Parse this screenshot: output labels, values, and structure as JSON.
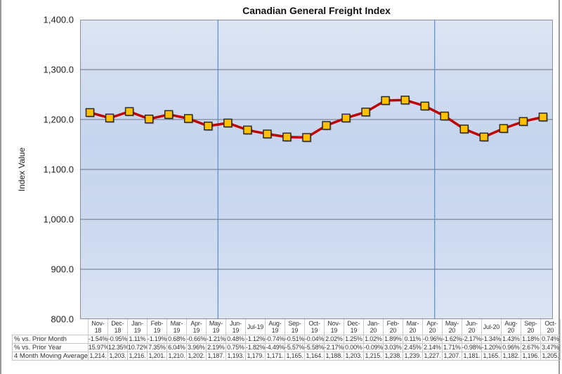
{
  "chart_data": {
    "type": "line",
    "title": "Canadian General Freight Index",
    "xlabel": "",
    "ylabel": "Index Value",
    "ylim": [
      800,
      1400
    ],
    "yticks": [
      "1,400.0",
      "1,300.0",
      "1,200.0",
      "1,100.0",
      "1,000.0",
      "900.0",
      "800.0"
    ],
    "grid": "horizontal",
    "categories": [
      "Nov-18",
      "Dec-18",
      "Jan-19",
      "Feb-19",
      "Mar-19",
      "Apr-19",
      "May-19",
      "Jun-19",
      "Jul-19",
      "Aug-19",
      "Sep-19",
      "Oct-19",
      "Nov-19",
      "Dec-19",
      "Jan-20",
      "Feb-20",
      "Mar-20",
      "Apr-20",
      "May-20",
      "Jun-20",
      "Jul-20",
      "Aug-20",
      "Sep-20",
      "Oct-20"
    ],
    "category_labels": [
      [
        "Nov-",
        "18"
      ],
      [
        "Dec-",
        "18"
      ],
      [
        "Jan-",
        "19"
      ],
      [
        "Feb-",
        "19"
      ],
      [
        "Mar-",
        "19"
      ],
      [
        "Apr-",
        "19"
      ],
      [
        "May-",
        "19"
      ],
      [
        "Jun-",
        "19"
      ],
      [
        "Jul-19",
        ""
      ],
      [
        "Aug-",
        "19"
      ],
      [
        "Sep-",
        "19"
      ],
      [
        "Oct-",
        "19"
      ],
      [
        "Nov-",
        "19"
      ],
      [
        "Dec-",
        "19"
      ],
      [
        "Jan-",
        "20"
      ],
      [
        "Feb-",
        "20"
      ],
      [
        "Mar-",
        "20"
      ],
      [
        "Apr-",
        "20"
      ],
      [
        "May-",
        "20"
      ],
      [
        "Jun-",
        "20"
      ],
      [
        "Jul-20",
        ""
      ],
      [
        "Aug-",
        "20"
      ],
      [
        "Sep-",
        "20"
      ],
      [
        "Oct-",
        "20"
      ]
    ],
    "series": [
      {
        "name": "4 Month Moving Average",
        "values": [
          1214,
          1203,
          1216,
          1201,
          1210,
          1202,
          1187,
          1193,
          1179,
          1171,
          1165,
          1164,
          1188,
          1203,
          1215,
          1238,
          1239,
          1227,
          1207,
          1181,
          1165,
          1182,
          1196,
          1205
        ],
        "line_color": "#c00000",
        "marker_color": "#ffc000",
        "marker": "square"
      }
    ],
    "vertical_markers_after": [
      "May-19",
      "Apr-20"
    ],
    "table": {
      "rows": [
        {
          "label": "% vs. Prior Month",
          "values": [
            "-1.54%",
            "-0.95%",
            "1.11%",
            "-1.19%",
            "0.68%",
            "-0.66%",
            "-1.21%",
            "0.48%",
            "-1.12%",
            "-0.74%",
            "-0.51%",
            "-0.04%",
            "2.02%",
            "1.25%",
            "1.02%",
            "1.89%",
            "0.11%",
            "-0.96%",
            "-1.62%",
            "-2.17%",
            "-1.34%",
            "1.43%",
            "1.18%",
            "0.74%"
          ]
        },
        {
          "label": "% vs. Prior Year",
          "values": [
            "15.97%",
            "12.35%",
            "10.72%",
            "7.35%",
            "6.04%",
            "3.96%",
            "2.19%",
            "0.75%",
            "-1.82%",
            "-4.49%",
            "-5.57%",
            "-5.58%",
            "-2.17%",
            "0.00%",
            "-0.09%",
            "3.03%",
            "2.45%",
            "2.14%",
            "1.71%",
            "-0.98%",
            "-1.20%",
            "0.96%",
            "2.67%",
            "3.47%"
          ]
        },
        {
          "label": "4 Month Moving Average",
          "values": [
            "1,214.",
            "1,203.",
            "1,216.",
            "1,201.",
            "1,210.",
            "1,202.",
            "1,187.",
            "1,193.",
            "1,179.",
            "1,171.",
            "1,165.",
            "1,164.",
            "1,188.",
            "1,203.",
            "1,215.",
            "1,238.",
            "1,239.",
            "1,227.",
            "1,207.",
            "1,181.",
            "1,165.",
            "1,182.",
            "1,196.",
            "1,205."
          ]
        }
      ]
    }
  }
}
